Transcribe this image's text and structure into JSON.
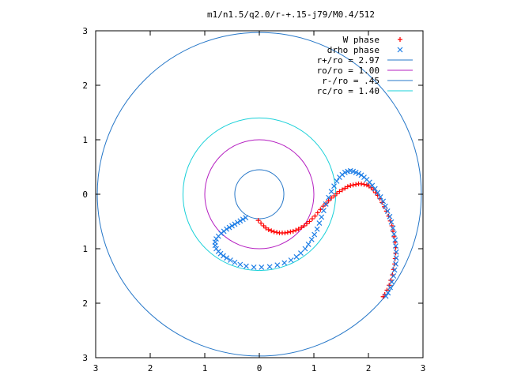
{
  "chart_data": {
    "type": "scatter",
    "title": "m1/n1.5/q2.0/r-+.15-j79/M0.4/512",
    "xlabel": "",
    "ylabel": "",
    "xlim": [
      -3,
      3
    ],
    "ylim": [
      -3,
      3
    ],
    "x_ticks": [
      {
        "value": -3,
        "label": "3"
      },
      {
        "value": -2,
        "label": "2"
      },
      {
        "value": -1,
        "label": "1"
      },
      {
        "value": 0,
        "label": "0"
      },
      {
        "value": 1,
        "label": "1"
      },
      {
        "value": 2,
        "label": "2"
      },
      {
        "value": 3,
        "label": "3"
      }
    ],
    "y_ticks": [
      {
        "value": 3,
        "label": "3"
      },
      {
        "value": 2,
        "label": "2"
      },
      {
        "value": 1,
        "label": "1"
      },
      {
        "value": 0,
        "label": "0"
      },
      {
        "value": -1,
        "label": "1"
      },
      {
        "value": -2,
        "label": "2"
      },
      {
        "value": -3,
        "label": "3"
      }
    ],
    "grid": false,
    "legend_position": "top-right",
    "colors": {
      "w_phase": "#ff0000",
      "drho_phase": "#1e7ee6",
      "r_plus": "#2677c8",
      "r_o": "#b51fc1",
      "r_minus": "#2677c8",
      "r_c": "#18d0d8"
    },
    "circles": [
      {
        "name": "r+/ro = 2.97",
        "radius": 2.97,
        "color": "#2677c8"
      },
      {
        "name": "ro/ro = 1.00",
        "radius": 1.0,
        "color": "#b51fc1"
      },
      {
        "name": "r-/ro = .45",
        "radius": 0.45,
        "color": "#2677c8"
      },
      {
        "name": "rc/ro = 1.40",
        "radius": 1.4,
        "color": "#18d0d8"
      }
    ],
    "series": [
      {
        "name": "W phase",
        "marker": "plus",
        "color": "#ff0000",
        "points": [
          [
            -0.02,
            -0.48
          ],
          [
            0.03,
            -0.53
          ],
          [
            0.08,
            -0.58
          ],
          [
            0.12,
            -0.62
          ],
          [
            0.17,
            -0.65
          ],
          [
            0.22,
            -0.67
          ],
          [
            0.27,
            -0.69
          ],
          [
            0.32,
            -0.7
          ],
          [
            0.37,
            -0.71
          ],
          [
            0.42,
            -0.71
          ],
          [
            0.47,
            -0.71
          ],
          [
            0.52,
            -0.7
          ],
          [
            0.57,
            -0.69
          ],
          [
            0.62,
            -0.68
          ],
          [
            0.67,
            -0.66
          ],
          [
            0.72,
            -0.64
          ],
          [
            0.77,
            -0.61
          ],
          [
            0.82,
            -0.58
          ],
          [
            0.87,
            -0.54
          ],
          [
            0.92,
            -0.5
          ],
          [
            0.97,
            -0.45
          ],
          [
            1.02,
            -0.4
          ],
          [
            1.07,
            -0.34
          ],
          [
            1.12,
            -0.28
          ],
          [
            1.17,
            -0.22
          ],
          [
            1.22,
            -0.17
          ],
          [
            1.27,
            -0.12
          ],
          [
            1.32,
            -0.07
          ],
          [
            1.37,
            -0.03
          ],
          [
            1.42,
            0.01
          ],
          [
            1.47,
            0.05
          ],
          [
            1.52,
            0.08
          ],
          [
            1.57,
            0.11
          ],
          [
            1.62,
            0.14
          ],
          [
            1.67,
            0.16
          ],
          [
            1.72,
            0.17
          ],
          [
            1.77,
            0.18
          ],
          [
            1.82,
            0.19
          ],
          [
            1.87,
            0.19
          ],
          [
            1.92,
            0.18
          ],
          [
            1.97,
            0.17
          ],
          [
            2.01,
            0.15
          ],
          [
            2.05,
            0.12
          ],
          [
            2.09,
            0.08
          ],
          [
            2.13,
            0.03
          ],
          [
            2.17,
            -0.02
          ],
          [
            2.21,
            -0.08
          ],
          [
            2.25,
            -0.15
          ],
          [
            2.29,
            -0.23
          ],
          [
            2.33,
            -0.31
          ],
          [
            2.37,
            -0.4
          ],
          [
            2.4,
            -0.49
          ],
          [
            2.43,
            -0.58
          ],
          [
            2.45,
            -0.68
          ],
          [
            2.47,
            -0.78
          ],
          [
            2.49,
            -0.88
          ],
          [
            2.5,
            -0.98
          ],
          [
            2.5,
            -1.08
          ],
          [
            2.49,
            -1.18
          ],
          [
            2.48,
            -1.28
          ],
          [
            2.46,
            -1.38
          ],
          [
            2.44,
            -1.48
          ],
          [
            2.41,
            -1.58
          ],
          [
            2.38,
            -1.67
          ],
          [
            2.34,
            -1.76
          ],
          [
            2.3,
            -1.84
          ],
          [
            2.27,
            -1.88
          ]
        ]
      },
      {
        "name": "drho phase",
        "marker": "cross",
        "color": "#1e7ee6",
        "points": [
          [
            -0.25,
            -0.43
          ],
          [
            -0.3,
            -0.46
          ],
          [
            -0.35,
            -0.49
          ],
          [
            -0.4,
            -0.52
          ],
          [
            -0.45,
            -0.55
          ],
          [
            -0.5,
            -0.58
          ],
          [
            -0.55,
            -0.61
          ],
          [
            -0.6,
            -0.64
          ],
          [
            -0.65,
            -0.68
          ],
          [
            -0.7,
            -0.72
          ],
          [
            -0.75,
            -0.77
          ],
          [
            -0.79,
            -0.82
          ],
          [
            -0.81,
            -0.88
          ],
          [
            -0.81,
            -0.94
          ],
          [
            -0.79,
            -1.0
          ],
          [
            -0.75,
            -1.05
          ],
          [
            -0.71,
            -1.09
          ],
          [
            -0.66,
            -1.13
          ],
          [
            -0.6,
            -1.17
          ],
          [
            -0.53,
            -1.21
          ],
          [
            -0.45,
            -1.25
          ],
          [
            -0.35,
            -1.29
          ],
          [
            -0.24,
            -1.32
          ],
          [
            -0.1,
            -1.34
          ],
          [
            0.04,
            -1.34
          ],
          [
            0.19,
            -1.33
          ],
          [
            0.33,
            -1.3
          ],
          [
            0.46,
            -1.26
          ],
          [
            0.58,
            -1.21
          ],
          [
            0.68,
            -1.15
          ],
          [
            0.76,
            -1.08
          ],
          [
            0.84,
            -1.0
          ],
          [
            0.9,
            -0.92
          ],
          [
            0.96,
            -0.83
          ],
          [
            1.01,
            -0.74
          ],
          [
            1.06,
            -0.64
          ],
          [
            1.1,
            -0.53
          ],
          [
            1.14,
            -0.42
          ],
          [
            1.18,
            -0.3
          ],
          [
            1.22,
            -0.18
          ],
          [
            1.27,
            -0.06
          ],
          [
            1.32,
            0.05
          ],
          [
            1.37,
            0.15
          ],
          [
            1.42,
            0.24
          ],
          [
            1.47,
            0.31
          ],
          [
            1.52,
            0.36
          ],
          [
            1.57,
            0.4
          ],
          [
            1.62,
            0.42
          ],
          [
            1.67,
            0.43
          ],
          [
            1.72,
            0.42
          ],
          [
            1.77,
            0.4
          ],
          [
            1.82,
            0.38
          ],
          [
            1.87,
            0.35
          ],
          [
            1.92,
            0.31
          ],
          [
            1.97,
            0.27
          ],
          [
            2.02,
            0.22
          ],
          [
            2.07,
            0.16
          ],
          [
            2.12,
            0.1
          ],
          [
            2.17,
            0.03
          ],
          [
            2.22,
            -0.05
          ],
          [
            2.27,
            -0.13
          ],
          [
            2.31,
            -0.22
          ],
          [
            2.35,
            -0.31
          ],
          [
            2.39,
            -0.41
          ],
          [
            2.42,
            -0.51
          ],
          [
            2.45,
            -0.62
          ],
          [
            2.47,
            -0.73
          ],
          [
            2.49,
            -0.84
          ],
          [
            2.5,
            -0.95
          ],
          [
            2.51,
            -1.06
          ],
          [
            2.51,
            -1.17
          ],
          [
            2.5,
            -1.28
          ],
          [
            2.48,
            -1.39
          ],
          [
            2.46,
            -1.5
          ],
          [
            2.43,
            -1.61
          ],
          [
            2.4,
            -1.71
          ],
          [
            2.36,
            -1.81
          ],
          [
            2.32,
            -1.87
          ]
        ]
      }
    ]
  }
}
